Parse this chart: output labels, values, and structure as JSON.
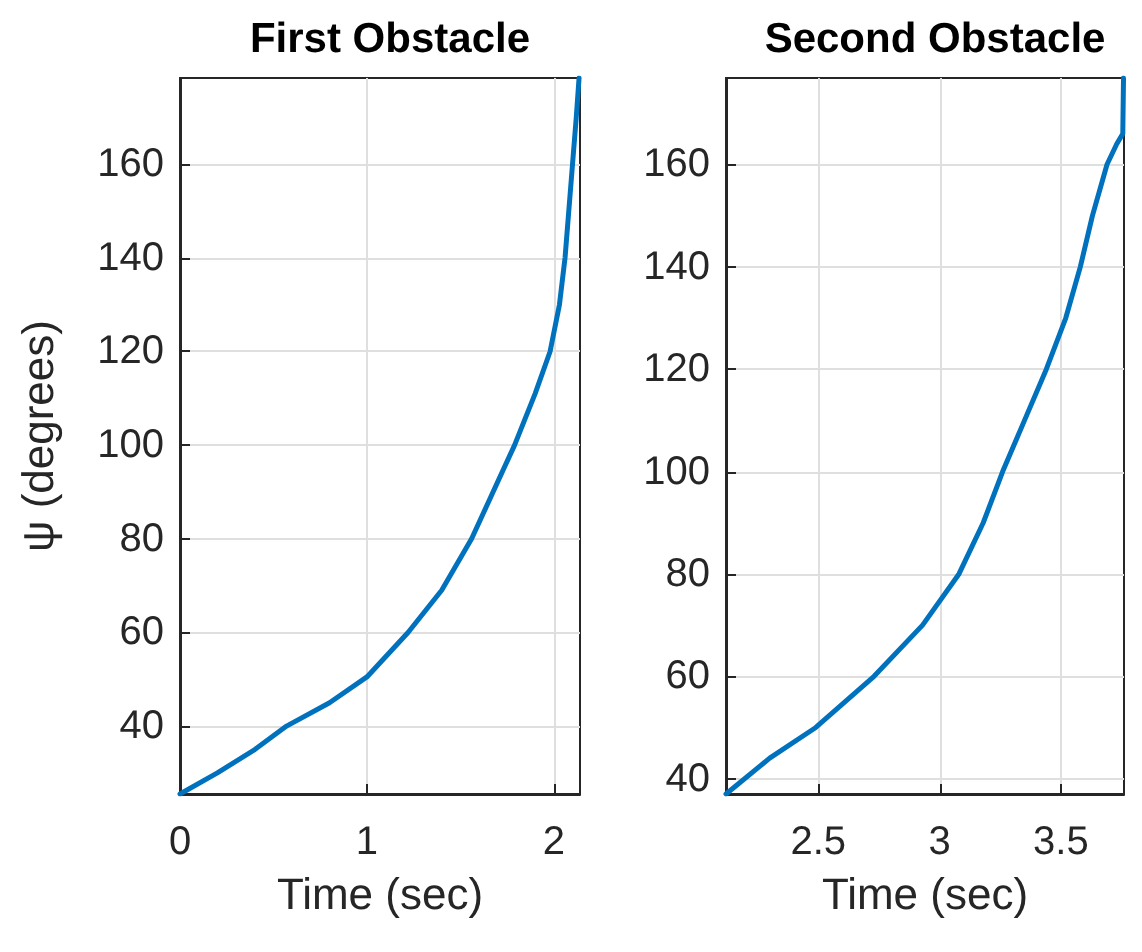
{
  "chart_data": [
    {
      "type": "line",
      "title": "First Obstacle",
      "xlabel": "Time (sec)",
      "ylabel": "ψ (degrees)",
      "xlim": [
        0,
        2.14
      ],
      "xticks": [
        0,
        1,
        2
      ],
      "ylim": [
        25.5,
        178.4
      ],
      "yticks": [
        40,
        60,
        80,
        100,
        120,
        140,
        160
      ],
      "grid": true,
      "marker": "none",
      "line_style": "solid",
      "series": [
        {
          "color": "#0072bd",
          "x": [
            0,
            0.2,
            0.4,
            0.57,
            0.8,
            1.0,
            1.22,
            1.4,
            1.56,
            1.79,
            1.9,
            1.98,
            2.03,
            2.06,
            2.1,
            2.12,
            2.135
          ],
          "values": [
            25.5,
            30,
            35,
            40,
            45,
            50.5,
            60,
            69,
            80,
            100,
            111,
            120,
            130,
            140,
            160,
            170,
            178.4
          ]
        }
      ]
    },
    {
      "type": "line",
      "title": "Second Obstacle",
      "xlabel": "Time (sec)",
      "xlim": [
        2.12,
        3.76
      ],
      "xticks": [
        2.5,
        3,
        3.5
      ],
      "ylim": [
        37,
        176.9
      ],
      "yticks": [
        40,
        60,
        80,
        100,
        120,
        140,
        160
      ],
      "grid": true,
      "marker": "none",
      "line_style": "solid",
      "series": [
        {
          "color": "#0072bd",
          "x": [
            2.12,
            2.3,
            2.49,
            2.73,
            2.93,
            3.08,
            3.18,
            3.26,
            3.35,
            3.44,
            3.52,
            3.58,
            3.63,
            3.69,
            3.73,
            3.755,
            3.758
          ],
          "values": [
            37,
            44,
            50,
            60,
            70,
            80,
            90,
            100,
            110,
            120,
            130,
            140,
            150,
            160,
            164,
            166,
            176.9
          ]
        }
      ]
    }
  ]
}
